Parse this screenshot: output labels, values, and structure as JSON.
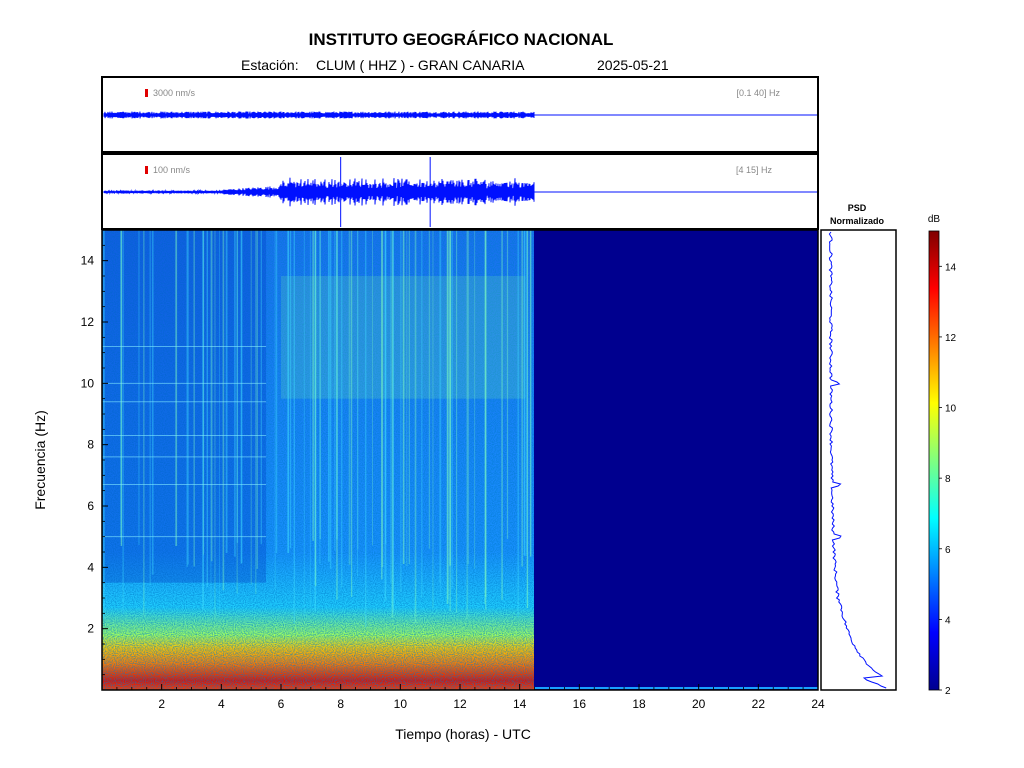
{
  "chart_data": {
    "type": "heatmap",
    "title": "INSTITUTO GEOGRÁFICO NACIONAL",
    "subtitle": {
      "station_label": "Estación:",
      "station": "CLUM ( HHZ ) - GRAN CANARIA",
      "date": "2025-05-21"
    },
    "traces": [
      {
        "scale_label": "3000 nm/s",
        "band_label": "[0.1 40] Hz",
        "data_end_hour": 14.5
      },
      {
        "scale_label": "100 nm/s",
        "band_label": "[4 15] Hz",
        "data_end_hour": 14.5
      }
    ],
    "spectrogram": {
      "xlabel": "Tiempo (horas) - UTC",
      "ylabel": "Frecuencia  (Hz)",
      "xlim": [
        0,
        24
      ],
      "ylim": [
        0,
        15
      ],
      "x_ticks": [
        "2",
        "4",
        "6",
        "8",
        "10",
        "12",
        "14",
        "16",
        "18",
        "20",
        "22",
        "24"
      ],
      "y_ticks": [
        "2",
        "4",
        "6",
        "8",
        "10",
        "12",
        "14"
      ],
      "data_end_hour": 14.5,
      "colormap": "jet",
      "band_profile_db": [
        {
          "freq": 0.1,
          "db": 14
        },
        {
          "freq": 0.3,
          "db": 13
        },
        {
          "freq": 0.8,
          "db": 12
        },
        {
          "freq": 1.3,
          "db": 10.5
        },
        {
          "freq": 1.8,
          "db": 9
        },
        {
          "freq": 2.5,
          "db": 7.5
        },
        {
          "freq": 4,
          "db": 6.2
        },
        {
          "freq": 8,
          "db": 5.5
        },
        {
          "freq": 15,
          "db": 5.2
        }
      ]
    },
    "psd": {
      "label_line1": "PSD",
      "label_line2": "Normalizado"
    },
    "colorbar": {
      "unit": "dB",
      "range": [
        2,
        15
      ],
      "ticks": [
        "2",
        "4",
        "6",
        "8",
        "10",
        "12",
        "14"
      ]
    }
  }
}
